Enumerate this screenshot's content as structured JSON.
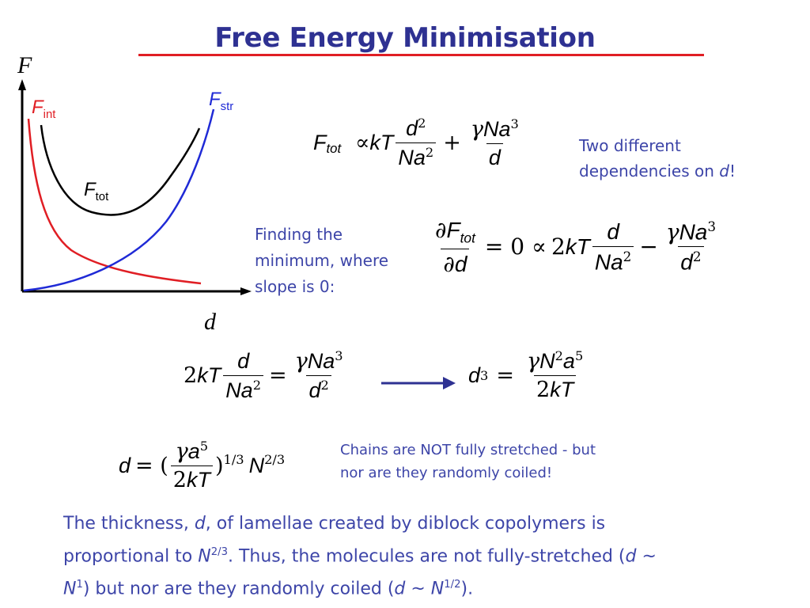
{
  "slide": {
    "title": "Free Energy Minimisation",
    "accent_color": "#2e3192",
    "rule_color": "#e01e24"
  },
  "graph": {
    "y_axis_label": "F",
    "x_axis_label": "d",
    "f_int": {
      "base": "F",
      "sub": "int",
      "color": "#e01e24"
    },
    "f_str": {
      "base": "F",
      "sub": "str",
      "color": "#1f2ad6"
    },
    "f_tot": {
      "base": "F",
      "sub": "tot",
      "color": "#000000"
    }
  },
  "equations": {
    "eq1": {
      "lhs": "F",
      "lhs_sub": "tot",
      "prop": "∝",
      "kT": "kT",
      "d": "d",
      "exp2": "2",
      "Na": "Na",
      "plus": "+",
      "gamma": "γ",
      "Na3": "Na",
      "exp3": "3",
      "den": "d"
    },
    "eq2": {
      "partial": "∂",
      "F": "F",
      "F_sub": "tot",
      "d": "d",
      "equals_zero": "= 0 ∝",
      "two": "2",
      "kT": "kT",
      "d_num": "d",
      "Na": "Na",
      "exp2": "2",
      "minus": "−",
      "gamma": "γ",
      "Na3": "Na",
      "exp3": "3",
      "d_den": "d",
      "exp2b": "2"
    },
    "eq3": {
      "two": "2",
      "kT": "kT",
      "d": "d",
      "Na": "Na",
      "exp2": "2",
      "eq": "=",
      "gamma": "γ",
      "Na3": "Na",
      "exp3": "3",
      "d_den": "d",
      "exp2b": "2"
    },
    "eq4": {
      "d": "d",
      "exp3": "3",
      "eq": "=",
      "gamma": "γ",
      "N": "N",
      "exp2": "2",
      "a": "a",
      "exp5": "5",
      "two": "2",
      "kT": "kT"
    },
    "eq5": {
      "d": "d",
      "eq": "= (",
      "gamma": "γ",
      "a": "a",
      "exp5": "5",
      "two": "2",
      "kT": "kT",
      "close": ")",
      "exp13": "1/3",
      "N": "N",
      "exp23": "2/3"
    }
  },
  "notes": {
    "two_dependencies_line1": "Two different",
    "two_dependencies_line2a": "dependencies on ",
    "two_dependencies_d": "d",
    "two_dependencies_end": "!",
    "finding_line1": "Finding the",
    "finding_line2": "minimum, where",
    "finding_line3": "slope is 0:",
    "chains_line1": "Chains are NOT fully stretched - but",
    "chains_line2": "nor are they randomly coiled!"
  },
  "bottom": {
    "t1": "The thickness, ",
    "t2": "d",
    "t3": ", of lamellae created by diblock copolymers is",
    "t4": "proportional to ",
    "t5": "N",
    "t6": "2/3",
    "t7": ".  Thus, the molecules are not fully-stretched (",
    "t8": "d",
    "t9": " ~",
    "t10": "N",
    "t11": "1",
    "t12": ") but nor are they randomly coiled (",
    "t13": "d",
    "t14": " ~ ",
    "t15": "N",
    "t16": "1/2",
    "t17": ")."
  }
}
